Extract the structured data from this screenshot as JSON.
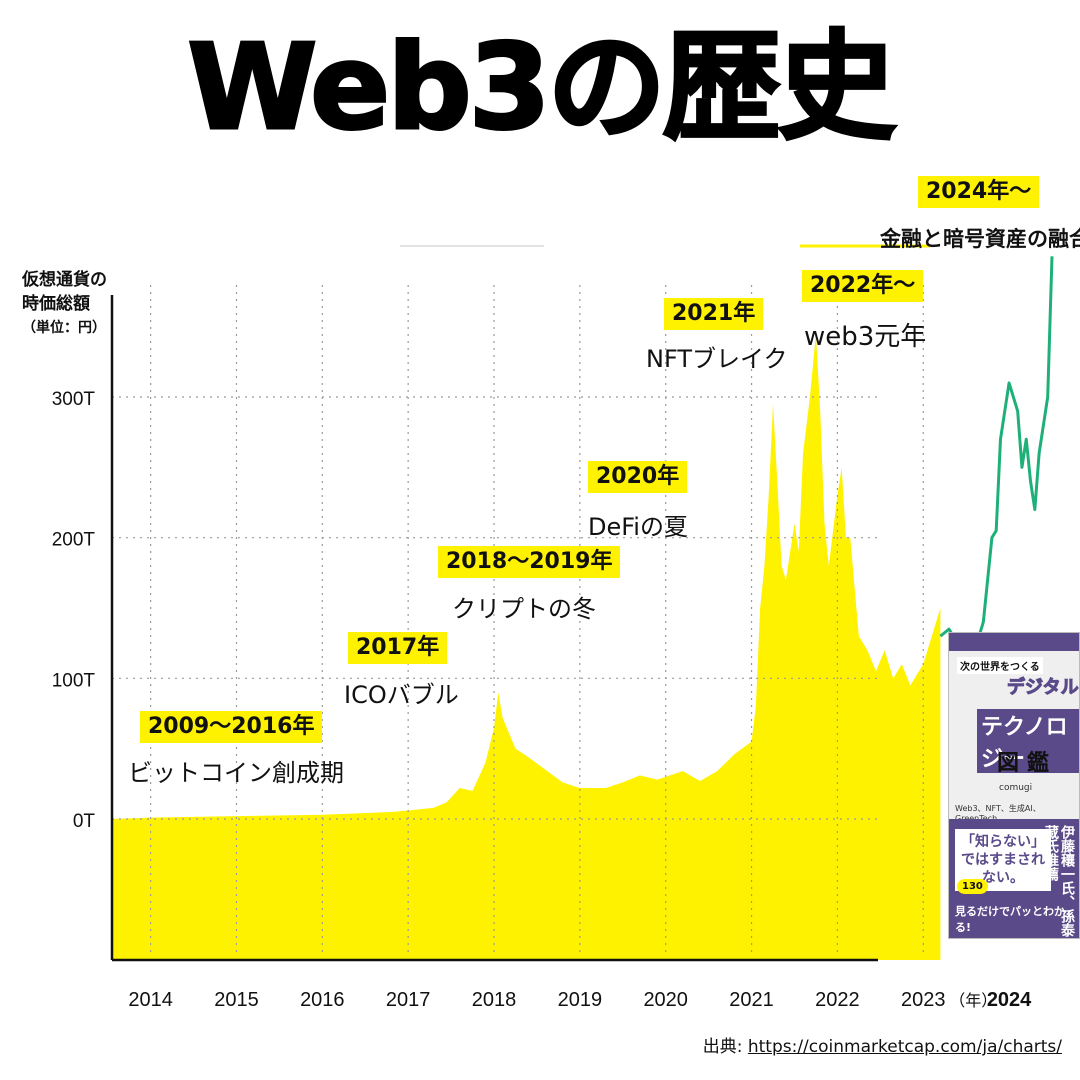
{
  "title": "Web3の歴史",
  "colors": {
    "area_fill": "#fff200",
    "line_2024": "#1fb07a",
    "highlight": "#fff200",
    "grid": "#9a9a9a",
    "axis": "#111111"
  },
  "y_label": {
    "line1": "仮想通貨の",
    "line2": "時価総額",
    "unit": "（単位：円）"
  },
  "annotations": [
    {
      "period": "2009～2016年",
      "desc": "ビットコイン創成期"
    },
    {
      "period": "2017年",
      "desc": "ICOバブル"
    },
    {
      "period": "2018～2019年",
      "desc": "クリプトの冬"
    },
    {
      "period": "2020年",
      "desc": "DeFiの夏"
    },
    {
      "period": "2021年",
      "desc": "NFTブレイク"
    },
    {
      "period": "2022年～",
      "desc": "web3元年"
    },
    {
      "period": "2024年～",
      "desc": "金融と暗号資産の融合"
    }
  ],
  "source": {
    "prefix": "出典: ",
    "url": "https://coinmarketcap.com/ja/charts/"
  },
  "book": {
    "top_text": "次の世界をつくる",
    "title_line1": "デジタル",
    "title_line2": "テクノロジー",
    "title_line3": "図鑑",
    "author": "comugi",
    "keywords": "Web3、NFT、生成AI、GreenTech…",
    "main_copy": "「知らない」ではすまされない。",
    "side_copy": "伊藤穰一氏、孫泰蔵氏推薦",
    "badge": "130",
    "footer": "見るだけでパッとわかる!"
  },
  "chart_data": {
    "type": "area",
    "title": "Web3の歴史",
    "ylabel": "仮想通貨の時価総額（単位：円）",
    "xlabel": "（年）",
    "yticks": [
      0,
      100,
      200,
      300
    ],
    "ytick_labels": [
      "0T",
      "100T",
      "200T",
      "300T"
    ],
    "ylim": [
      -100,
      360
    ],
    "xlim": [
      2013.55,
      2024.5
    ],
    "xticks": [
      2014,
      2015,
      2016,
      2017,
      2018,
      2019,
      2020,
      2021,
      2022,
      2023,
      2024
    ],
    "xtick_labels": [
      "2014",
      "2015",
      "2016",
      "2017",
      "2018",
      "2019",
      "2020",
      "2021",
      "2022",
      "2023",
      "2024"
    ],
    "x_unit_label": "（年）",
    "grid": true,
    "series": [
      {
        "type": "area",
        "x": [
          2013.55,
          2014.0,
          2015.0,
          2016.0,
          2016.8,
          2017.0,
          2017.3,
          2017.45,
          2017.6,
          2017.75,
          2017.9,
          2018.0,
          2018.05,
          2018.1,
          2018.25,
          2018.4,
          2018.6,
          2018.8,
          2019.0,
          2019.3,
          2019.5,
          2019.7,
          2019.9,
          2020.2,
          2020.4,
          2020.6,
          2020.8,
          2021.0,
          2021.05,
          2021.1,
          2021.15,
          2021.2,
          2021.25,
          2021.3,
          2021.35,
          2021.4,
          2021.5,
          2021.55,
          2021.6,
          2021.68,
          2021.75,
          2021.8,
          2021.85,
          2021.9,
          2022.0,
          2022.05,
          2022.1,
          2022.15,
          2022.25,
          2022.35,
          2022.45,
          2022.55,
          2022.65,
          2022.75,
          2022.85,
          2023.0,
          2023.1,
          2023.2
        ],
        "y": [
          0,
          1,
          2,
          3,
          5,
          6,
          8,
          12,
          22,
          20,
          40,
          65,
          90,
          72,
          50,
          44,
          35,
          26,
          22,
          22,
          26,
          31,
          28,
          34,
          27,
          34,
          46,
          55,
          80,
          150,
          180,
          230,
          295,
          240,
          180,
          170,
          210,
          190,
          260,
          300,
          345,
          290,
          210,
          180,
          230,
          250,
          200,
          200,
          130,
          120,
          105,
          120,
          100,
          110,
          95,
          110,
          130,
          150
        ]
      },
      {
        "type": "line",
        "x": [
          2023.2,
          2023.3,
          2023.4,
          2023.5,
          2023.6,
          2023.7,
          2023.8,
          2023.85,
          2023.9,
          2024.0,
          2024.1,
          2024.15,
          2024.2,
          2024.25,
          2024.3,
          2024.35,
          2024.4,
          2024.45,
          2024.5
        ],
        "y": [
          130,
          135,
          125,
          120,
          120,
          140,
          200,
          205,
          270,
          310,
          290,
          250,
          270,
          240,
          220,
          260,
          280,
          300,
          400
        ]
      }
    ]
  }
}
